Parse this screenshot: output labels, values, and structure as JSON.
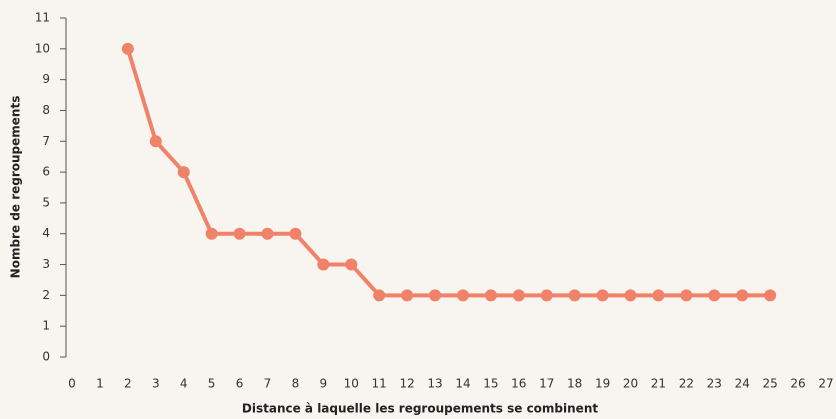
{
  "chart_data": {
    "type": "line",
    "xlabel": "Distance à laquelle les regroupements se combinent",
    "ylabel": "Nombre de regroupements",
    "x": [
      2,
      3,
      4,
      5,
      6,
      7,
      8,
      9,
      10,
      11,
      12,
      13,
      14,
      15,
      16,
      17,
      18,
      19,
      20,
      21,
      22,
      23,
      24,
      25
    ],
    "series": [
      {
        "color": "#f0826a",
        "values": [
          10,
          7,
          6,
          4,
          4,
          4,
          4,
          3,
          3,
          2,
          2,
          2,
          2,
          2,
          2,
          2,
          2,
          2,
          2,
          2,
          2,
          2,
          2,
          2
        ]
      }
    ],
    "xlim": [
      0,
      27
    ],
    "xticks": [
      0,
      1,
      2,
      3,
      4,
      5,
      6,
      7,
      8,
      9,
      10,
      11,
      12,
      13,
      14,
      15,
      16,
      17,
      18,
      19,
      20,
      21,
      22,
      23,
      24,
      25,
      26,
      27
    ],
    "ylim": [
      0,
      11
    ],
    "yticks": [
      0,
      1,
      2,
      3,
      4,
      5,
      6,
      7,
      8,
      9,
      10,
      11
    ],
    "grid": false
  }
}
